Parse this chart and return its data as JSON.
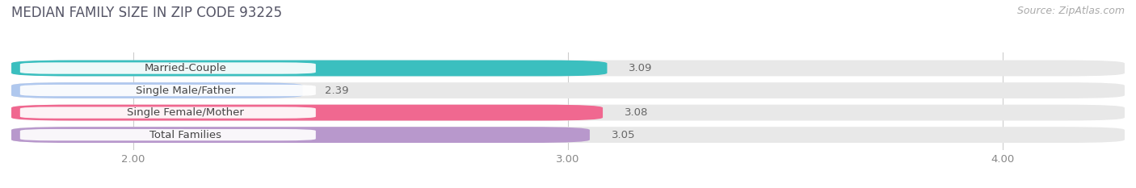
{
  "title": "MEDIAN FAMILY SIZE IN ZIP CODE 93225",
  "source": "Source: ZipAtlas.com",
  "categories": [
    "Married-Couple",
    "Single Male/Father",
    "Single Female/Mother",
    "Total Families"
  ],
  "values": [
    3.09,
    2.39,
    3.08,
    3.05
  ],
  "colors": [
    "#3bbfbf",
    "#b0c8ee",
    "#f06890",
    "#b898cc"
  ],
  "bar_background": "#e8e8e8",
  "xlim_data": [
    1.72,
    4.28
  ],
  "xmin": 2.0,
  "xmax": 4.0,
  "xticks": [
    2.0,
    3.0,
    4.0
  ],
  "xtick_labels": [
    "2.00",
    "3.00",
    "4.00"
  ],
  "bar_height": 0.72,
  "label_fontsize": 9.5,
  "value_fontsize": 9.5,
  "title_fontsize": 12,
  "source_fontsize": 9,
  "title_color": "#555566",
  "label_color": "#444444",
  "value_color": "#666666",
  "source_color": "#aaaaaa",
  "grid_color": "#cccccc"
}
